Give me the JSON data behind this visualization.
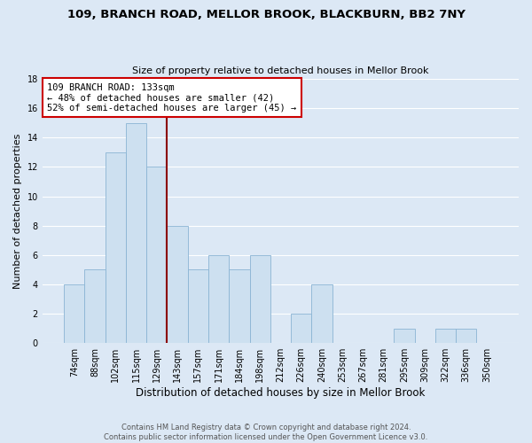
{
  "title": "109, BRANCH ROAD, MELLOR BROOK, BLACKBURN, BB2 7NY",
  "subtitle": "Size of property relative to detached houses in Mellor Brook",
  "xlabel": "Distribution of detached houses by size in Mellor Brook",
  "ylabel": "Number of detached properties",
  "footnote1": "Contains HM Land Registry data © Crown copyright and database right 2024.",
  "footnote2": "Contains public sector information licensed under the Open Government Licence v3.0.",
  "bar_labels": [
    "74sqm",
    "88sqm",
    "102sqm",
    "115sqm",
    "129sqm",
    "143sqm",
    "157sqm",
    "171sqm",
    "184sqm",
    "198sqm",
    "212sqm",
    "226sqm",
    "240sqm",
    "253sqm",
    "267sqm",
    "281sqm",
    "295sqm",
    "309sqm",
    "322sqm",
    "336sqm",
    "350sqm"
  ],
  "bar_values": [
    4,
    5,
    13,
    15,
    12,
    8,
    5,
    6,
    5,
    6,
    0,
    2,
    4,
    0,
    0,
    0,
    1,
    0,
    1,
    1,
    0
  ],
  "bar_color": "#cde0f0",
  "bar_edge_color": "#8ab4d4",
  "ylim": [
    0,
    18
  ],
  "yticks": [
    0,
    2,
    4,
    6,
    8,
    10,
    12,
    14,
    16,
    18
  ],
  "property_line_x": 4.5,
  "annotation_title": "109 BRANCH ROAD: 133sqm",
  "annotation_line1": "← 48% of detached houses are smaller (42)",
  "annotation_line2": "52% of semi-detached houses are larger (45) →",
  "annotation_box_color": "#ffffff",
  "annotation_box_edge": "#cc0000",
  "property_line_color": "#8b0000",
  "background_color": "#dce8f5",
  "plot_background": "#dce8f5",
  "grid_color": "#ffffff",
  "title_fontsize": 9.5,
  "subtitle_fontsize": 8,
  "footnote_color": "#555555",
  "footnote_fontsize": 6.0
}
